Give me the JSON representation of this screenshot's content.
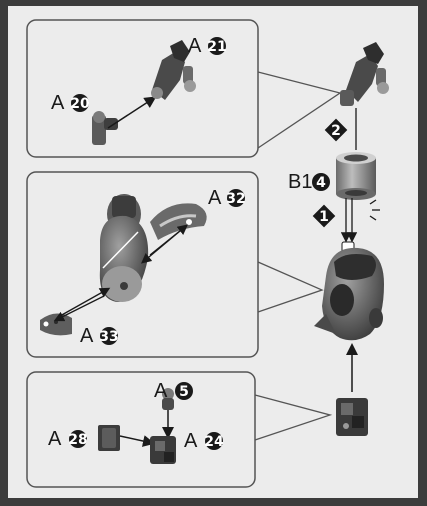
{
  "colors": {
    "background": "#3c3c3c",
    "paper": "#ececec",
    "panel_stroke": "#555555",
    "part_dark": "#4a4a4a",
    "part_mid": "#7a7a7a",
    "part_light": "#c8c8c8",
    "ink": "#1a1a1a"
  },
  "panel_top": {
    "label_a20": "A",
    "num_a20": "20",
    "label_a21": "A",
    "num_a21": "21"
  },
  "panel_middle": {
    "label_a32": "A",
    "num_a32": "32",
    "label_a33": "A",
    "num_a33": "33"
  },
  "panel_bottom": {
    "label_a5": "A",
    "num_a5": "5",
    "label_a28": "A",
    "num_a28": "28",
    "label_a24": "A",
    "num_a24": "24"
  },
  "main": {
    "label_b1": "B1",
    "num_b1": "4",
    "step1": "1",
    "step2": "2"
  }
}
